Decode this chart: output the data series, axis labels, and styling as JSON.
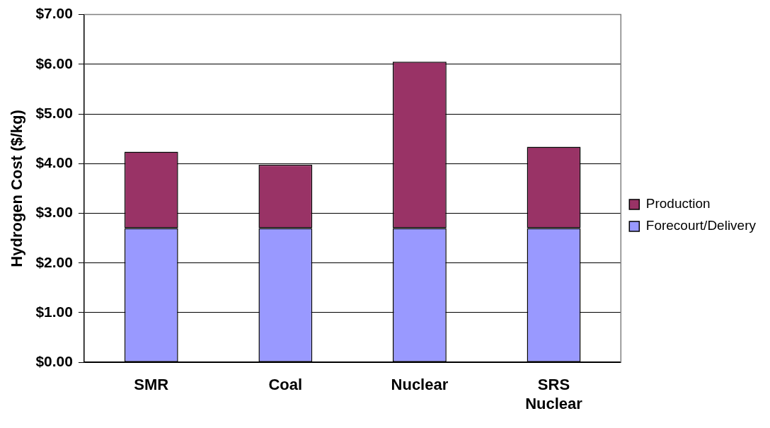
{
  "chart_data": {
    "type": "bar",
    "stacked": true,
    "ylabel": "Hydrogen Cost ($/kg)",
    "categories": [
      "SMR",
      "Coal",
      "Nuclear",
      "SRS Nuclear"
    ],
    "series": [
      {
        "name": "Forecourt/Delivery",
        "color": "#9999ff",
        "values": [
          2.7,
          2.7,
          2.7,
          2.7
        ]
      },
      {
        "name": "Production",
        "color": "#993366",
        "values": [
          1.54,
          1.28,
          3.35,
          1.64
        ]
      }
    ],
    "ylim": [
      0,
      7
    ],
    "yticks": [
      {
        "value": 0,
        "label": "$0.00"
      },
      {
        "value": 1,
        "label": "$1.00"
      },
      {
        "value": 2,
        "label": "$2.00"
      },
      {
        "value": 3,
        "label": "$3.00"
      },
      {
        "value": 4,
        "label": "$4.00"
      },
      {
        "value": 5,
        "label": "$5.00"
      },
      {
        "value": 6,
        "label": "$6.00"
      },
      {
        "value": 7,
        "label": "$7.00"
      }
    ],
    "grid": "y",
    "legend": "right"
  }
}
